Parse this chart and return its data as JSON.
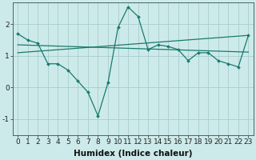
{
  "xlabel": "Humidex (Indice chaleur)",
  "ylabel": "",
  "xlim": [
    -0.5,
    23.5
  ],
  "ylim": [
    -1.5,
    2.7
  ],
  "bg_color": "#cdeaea",
  "grid_color": "#a8cccc",
  "line_color": "#1a7a6e",
  "line1_x": [
    0,
    1,
    2,
    3,
    4,
    5,
    6,
    7,
    8,
    9,
    10,
    11,
    12,
    13,
    14,
    15,
    16,
    17,
    18,
    19,
    20,
    21,
    22,
    23
  ],
  "line1_y": [
    1.7,
    1.5,
    1.4,
    0.75,
    0.75,
    0.55,
    0.2,
    -0.15,
    -0.9,
    0.15,
    1.9,
    2.55,
    2.25,
    1.2,
    1.35,
    1.3,
    1.2,
    0.85,
    1.1,
    1.1,
    0.85,
    0.75,
    0.65,
    1.65
  ],
  "line2_x": [
    0,
    23
  ],
  "line2_y": [
    1.1,
    1.65
  ],
  "line3_x": [
    0,
    23
  ],
  "line3_y": [
    1.35,
    1.12
  ],
  "xticks": [
    0,
    1,
    2,
    3,
    4,
    5,
    6,
    7,
    8,
    9,
    10,
    11,
    12,
    13,
    14,
    15,
    16,
    17,
    18,
    19,
    20,
    21,
    22,
    23
  ],
  "yticks": [
    -1,
    0,
    1,
    2
  ],
  "tick_fontsize": 6.5,
  "xlabel_fontsize": 7.5
}
